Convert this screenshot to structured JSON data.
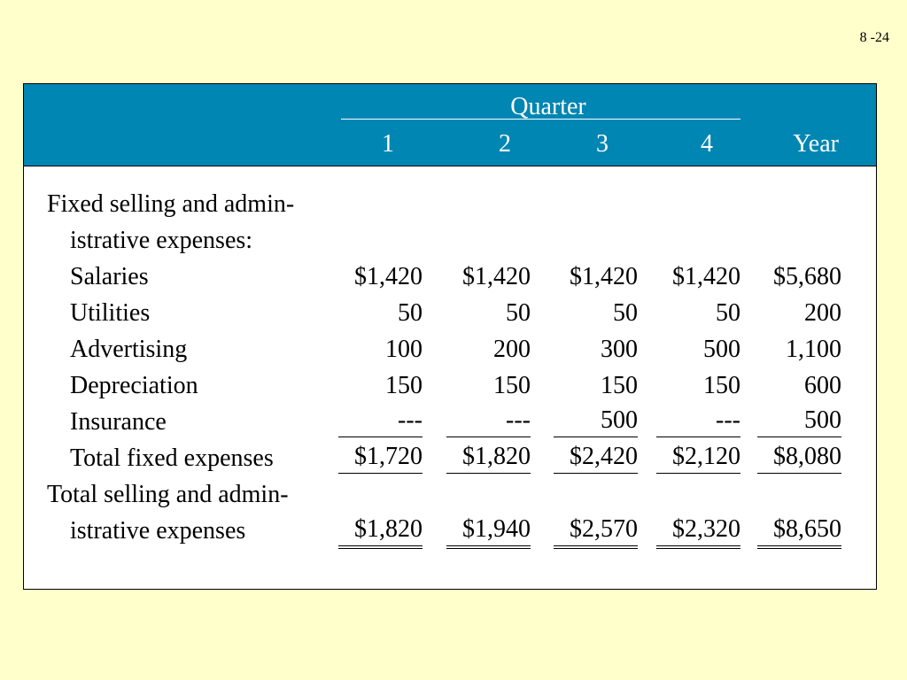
{
  "slide_number": "8 -24",
  "header": {
    "group_label": "Quarter",
    "columns": [
      "1",
      "2",
      "3",
      "4",
      "Year"
    ]
  },
  "rows": [
    {
      "label": "Fixed selling and admin-",
      "values": [
        "",
        "",
        "",
        "",
        ""
      ]
    },
    {
      "label": "istrative expenses:",
      "values": [
        "",
        "",
        "",
        "",
        ""
      ]
    },
    {
      "label": "Salaries",
      "values": [
        "$1,420",
        "$1,420",
        "$1,420",
        "$1,420",
        "$5,680"
      ]
    },
    {
      "label": "Utilities",
      "values": [
        "50",
        "50",
        "50",
        "50",
        "200"
      ]
    },
    {
      "label": "Advertising",
      "values": [
        "100",
        "200",
        "300",
        "500",
        "1,100"
      ]
    },
    {
      "label": "Depreciation",
      "values": [
        "150",
        "150",
        "150",
        "150",
        "600"
      ]
    },
    {
      "label": "Insurance",
      "values": [
        "---",
        "---",
        "500",
        "---",
        "500"
      ]
    },
    {
      "label": "Total fixed expenses",
      "values": [
        "$1,720",
        "$1,820",
        "$2,420",
        "$2,120",
        "$8,080"
      ]
    },
    {
      "label": "Total selling and admin-",
      "values": [
        "",
        "",
        "",
        "",
        ""
      ]
    },
    {
      "label": "istrative expenses",
      "values": [
        "$1,820",
        "$1,940",
        "$2,570",
        "$2,320",
        "$8,650"
      ]
    }
  ],
  "colors": {
    "background": "#FFFFCC",
    "header_band": "#0086B3",
    "header_text": "#FFFFFF"
  }
}
